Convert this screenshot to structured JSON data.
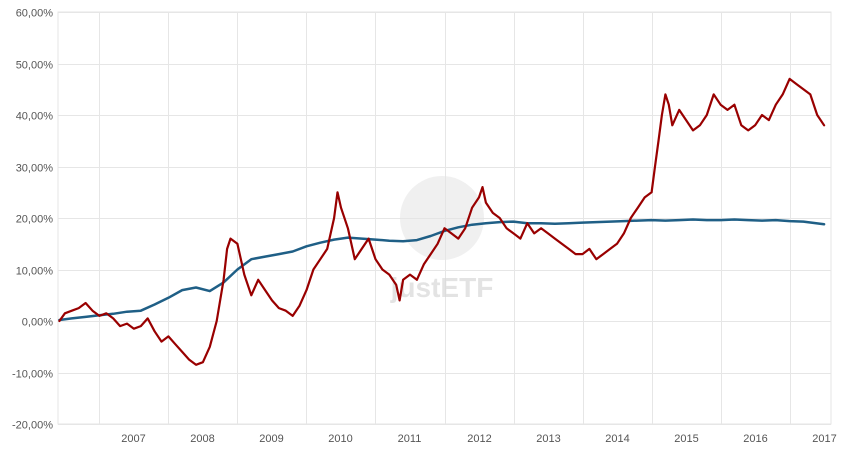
{
  "watermark": {
    "text": "justETF"
  },
  "chart_data": {
    "type": "line",
    "title": "",
    "xlabel": "",
    "ylabel": "",
    "ylim": [
      -20,
      60
    ],
    "xlim": [
      2006.4,
      2017.6
    ],
    "y_ticks": [
      -20,
      -10,
      0,
      10,
      20,
      30,
      40,
      50,
      60
    ],
    "y_tick_labels": [
      "-20,00%",
      "-10,00%",
      "0,00%",
      "10,00%",
      "20,00%",
      "30,00%",
      "40,00%",
      "50,00%",
      "60,00%"
    ],
    "x_tick_labels": [
      "2007",
      "2008",
      "2009",
      "2010",
      "2011",
      "2012",
      "2013",
      "2014",
      "2015",
      "2016",
      "2017"
    ],
    "x_tick_positions": [
      2007.0,
      2008.0,
      2009.0,
      2010.0,
      2011.0,
      2012.0,
      2013.0,
      2014.0,
      2015.0,
      2016.0,
      2017.0
    ],
    "grid": true,
    "legend": "none",
    "series": [
      {
        "color": "#1f5f86",
        "x": [
          2006.42,
          2006.6,
          2006.8,
          2007.0,
          2007.2,
          2007.4,
          2007.6,
          2007.8,
          2008.0,
          2008.2,
          2008.4,
          2008.6,
          2008.8,
          2009.0,
          2009.2,
          2009.4,
          2009.6,
          2009.8,
          2010.0,
          2010.2,
          2010.4,
          2010.6,
          2010.8,
          2011.0,
          2011.2,
          2011.4,
          2011.6,
          2011.8,
          2012.0,
          2012.2,
          2012.4,
          2012.6,
          2012.8,
          2013.0,
          2013.2,
          2013.4,
          2013.6,
          2013.8,
          2014.0,
          2014.2,
          2014.4,
          2014.6,
          2014.8,
          2015.0,
          2015.2,
          2015.4,
          2015.6,
          2015.8,
          2016.0,
          2016.2,
          2016.4,
          2016.6,
          2016.8,
          2017.0,
          2017.2,
          2017.5
        ],
        "values": [
          0.2,
          0.5,
          0.8,
          1.1,
          1.4,
          1.8,
          2.0,
          3.2,
          4.5,
          6.0,
          6.5,
          5.8,
          7.5,
          10.0,
          12.0,
          12.5,
          13.0,
          13.5,
          14.5,
          15.2,
          15.8,
          16.2,
          16.0,
          15.8,
          15.6,
          15.5,
          15.7,
          16.5,
          17.5,
          18.2,
          18.7,
          19.0,
          19.2,
          19.3,
          19.0,
          19.0,
          18.9,
          19.0,
          19.1,
          19.2,
          19.3,
          19.4,
          19.5,
          19.6,
          19.5,
          19.6,
          19.7,
          19.6,
          19.6,
          19.7,
          19.6,
          19.5,
          19.6,
          19.4,
          19.3,
          18.8
        ]
      },
      {
        "color": "#990000",
        "x": [
          2006.42,
          2006.5,
          2006.6,
          2006.7,
          2006.8,
          2006.9,
          2007.0,
          2007.1,
          2007.2,
          2007.3,
          2007.4,
          2007.5,
          2007.6,
          2007.7,
          2007.8,
          2007.9,
          2008.0,
          2008.1,
          2008.2,
          2008.3,
          2008.4,
          2008.5,
          2008.6,
          2008.7,
          2008.8,
          2008.85,
          2008.9,
          2009.0,
          2009.1,
          2009.2,
          2009.3,
          2009.4,
          2009.5,
          2009.6,
          2009.7,
          2009.8,
          2009.9,
          2010.0,
          2010.1,
          2010.2,
          2010.3,
          2010.4,
          2010.45,
          2010.5,
          2010.6,
          2010.7,
          2010.8,
          2010.9,
          2011.0,
          2011.1,
          2011.2,
          2011.3,
          2011.35,
          2011.4,
          2011.5,
          2011.6,
          2011.7,
          2011.8,
          2011.9,
          2012.0,
          2012.1,
          2012.2,
          2012.3,
          2012.4,
          2012.5,
          2012.55,
          2012.6,
          2012.7,
          2012.8,
          2012.9,
          2013.0,
          2013.1,
          2013.2,
          2013.3,
          2013.4,
          2013.5,
          2013.6,
          2013.7,
          2013.8,
          2013.9,
          2014.0,
          2014.1,
          2014.2,
          2014.3,
          2014.4,
          2014.5,
          2014.6,
          2014.7,
          2014.8,
          2014.9,
          2015.0,
          2015.05,
          2015.1,
          2015.15,
          2015.2,
          2015.25,
          2015.3,
          2015.4,
          2015.5,
          2015.6,
          2015.7,
          2015.8,
          2015.9,
          2016.0,
          2016.1,
          2016.2,
          2016.3,
          2016.4,
          2016.5,
          2016.6,
          2016.7,
          2016.8,
          2016.9,
          2017.0,
          2017.1,
          2017.2,
          2017.3,
          2017.4,
          2017.5
        ],
        "values": [
          0.0,
          1.5,
          2.0,
          2.5,
          3.5,
          2.0,
          1.0,
          1.5,
          0.5,
          -1.0,
          -0.5,
          -1.5,
          -1.0,
          0.5,
          -2.0,
          -4.0,
          -3.0,
          -4.5,
          -6.0,
          -7.5,
          -8.5,
          -8.0,
          -5.0,
          0.0,
          8.0,
          14.0,
          16.0,
          15.0,
          9.0,
          5.0,
          8.0,
          6.0,
          4.0,
          2.5,
          2.0,
          1.0,
          3.0,
          6.0,
          10.0,
          12.0,
          14.0,
          20.0,
          25.0,
          22.0,
          18.0,
          12.0,
          14.0,
          16.0,
          12.0,
          10.0,
          9.0,
          7.0,
          4.0,
          8.0,
          9.0,
          8.0,
          11.0,
          13.0,
          15.0,
          18.0,
          17.0,
          16.0,
          18.0,
          22.0,
          24.0,
          26.0,
          23.0,
          21.0,
          20.0,
          18.0,
          17.0,
          16.0,
          19.0,
          17.0,
          18.0,
          17.0,
          16.0,
          15.0,
          14.0,
          13.0,
          13.0,
          14.0,
          12.0,
          13.0,
          14.0,
          15.0,
          17.0,
          20.0,
          22.0,
          24.0,
          25.0,
          30.0,
          35.0,
          40.0,
          44.0,
          42.0,
          38.0,
          41.0,
          39.0,
          37.0,
          38.0,
          40.0,
          44.0,
          42.0,
          41.0,
          42.0,
          38.0,
          37.0,
          38.0,
          40.0,
          39.0,
          42.0,
          44.0,
          47.0,
          46.0,
          45.0,
          44.0,
          40.0,
          38.0
        ]
      }
    ]
  }
}
